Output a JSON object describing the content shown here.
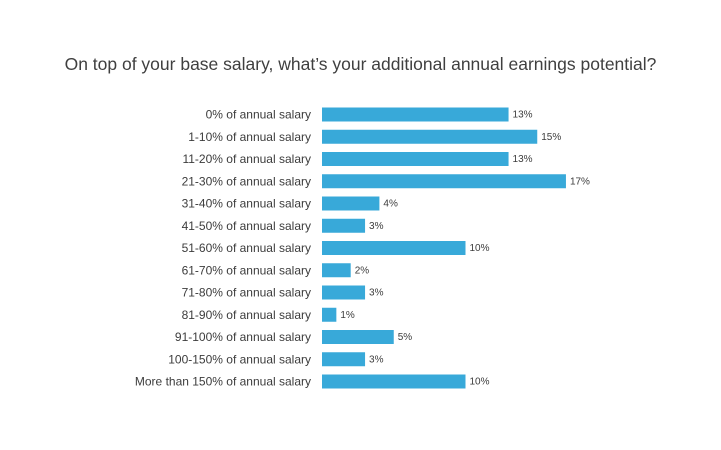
{
  "chart_data": {
    "type": "bar",
    "orientation": "horizontal",
    "title": "On top of your base salary, what’s your additional annual earnings potential?",
    "xlabel": "",
    "ylabel": "",
    "xlim": [
      0,
      17
    ],
    "grid": false,
    "legend": "none",
    "bar_color": "#38a9d9",
    "categories": [
      "0% of annual salary",
      "1-10% of annual salary",
      "11-20% of annual salary",
      "21-30% of annual salary",
      "31-40% of annual salary",
      "41-50% of annual salary",
      "51-60% of annual salary",
      "61-70% of annual salary",
      "71-80% of annual salary",
      "81-90% of annual salary",
      "91-100% of annual salary",
      "100-150% of annual salary",
      "More than 150% of annual salary"
    ],
    "values": [
      13,
      15,
      13,
      17,
      4,
      3,
      10,
      2,
      3,
      1,
      5,
      3,
      10
    ],
    "value_labels": [
      "13%",
      "15%",
      "13%",
      "17%",
      "4%",
      "3%",
      "10%",
      "2%",
      "3%",
      "1%",
      "5%",
      "3%",
      "10%"
    ]
  }
}
